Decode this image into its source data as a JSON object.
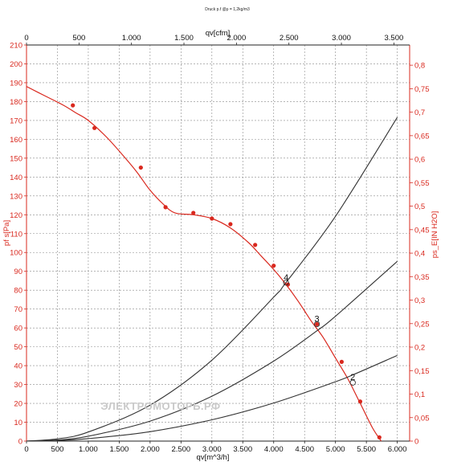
{
  "chart_data": {
    "type": "line",
    "title": "Druck p.f @ρ = 1,2kg/m3",
    "xlabel_bottom": "qv[m^3/h]",
    "xlabel_top": "qv[cfm]",
    "ylabel_left": "pf s[Pa]",
    "ylabel_right": "ps_E[IN H2O]",
    "xlim": [
      0,
      6200
    ],
    "ylim": [
      0,
      210
    ],
    "top_xlim": [
      0,
      3650
    ],
    "right_ylim": [
      0,
      0.843
    ],
    "x_ticks": [
      "0",
      "500",
      "1.000",
      "1.500",
      "2.000",
      "2.500",
      "3.000",
      "3.500",
      "4.000",
      "4.500",
      "5.000",
      "5.500",
      "6.000"
    ],
    "top_x_ticks": [
      "0",
      "500",
      "1.000",
      "1.500",
      "2.000",
      "2.500",
      "3.000",
      "3.500"
    ],
    "y_ticks": [
      "0",
      "10",
      "20",
      "30",
      "40",
      "50",
      "60",
      "70",
      "80",
      "90",
      "100",
      "110",
      "120",
      "130",
      "140",
      "150",
      "160",
      "170",
      "180",
      "190",
      "200",
      "210"
    ],
    "right_y_ticks": [
      "0",
      "0,05",
      "0,1",
      "0,15",
      "0,2",
      "0,25",
      "0,3",
      "0,35",
      "0,4",
      "0,45",
      "0,5",
      "0,55",
      "0,6",
      "0,65",
      "0,7",
      "0,75",
      "0,8"
    ],
    "grid": true,
    "series": [
      {
        "name": "pf s",
        "color": "#d9281e",
        "x": [
          0,
          300,
          600,
          800,
          1000,
          1300,
          1600,
          1800,
          2000,
          2200,
          2400,
          2700,
          3000,
          3300,
          3600,
          3800,
          4000,
          4200,
          4400,
          4600,
          4800,
          5000,
          5200,
          5400,
          5600,
          5740
        ],
        "y": [
          188,
          183,
          178,
          174,
          170,
          161,
          150,
          142,
          133,
          126,
          121,
          120,
          118,
          113,
          105,
          98,
          91,
          83,
          74,
          64,
          55,
          44,
          33,
          20,
          7,
          0
        ]
      },
      {
        "name": "curve 2",
        "color": "#333333",
        "x": [
          0,
          500,
          1000,
          2000,
          3000,
          4000,
          5000,
          5280,
          6000
        ],
        "y": [
          0,
          0.3,
          1.3,
          5.0,
          11.3,
          20.2,
          31.5,
          35.1,
          45.4
        ]
      },
      {
        "name": "curve 3",
        "color": "#333333",
        "x": [
          0,
          500,
          1000,
          2000,
          3000,
          4000,
          4700,
          5000,
          6000
        ],
        "y": [
          0,
          0.6,
          2.6,
          10.6,
          23.8,
          42.4,
          58.5,
          66.2,
          95.3
        ]
      },
      {
        "name": "curve 4",
        "color": "#333333",
        "x": [
          0,
          500,
          1000,
          2000,
          3000,
          4000,
          4200,
          5000,
          6000
        ],
        "y": [
          0,
          1.2,
          4.8,
          19.1,
          42.9,
          76.3,
          84.1,
          119.2,
          171.6
        ]
      }
    ],
    "markers": {
      "x": [
        750,
        1100,
        1850,
        2250,
        2700,
        3000,
        3300,
        3700,
        4000,
        4230,
        4700,
        5100,
        5400,
        5710
      ],
      "y": [
        178,
        166,
        145,
        124,
        121,
        118,
        115,
        104,
        93,
        83,
        62,
        42,
        21,
        2
      ]
    },
    "operating_points": [
      {
        "label": "2",
        "x": 5280,
        "y": 31
      },
      {
        "label": "3",
        "x": 4700,
        "y": 62
      },
      {
        "label": "4",
        "x": 4200,
        "y": 84
      }
    ]
  },
  "watermark": "ЭЛЕКТРОМОТОРЬ.РФ"
}
